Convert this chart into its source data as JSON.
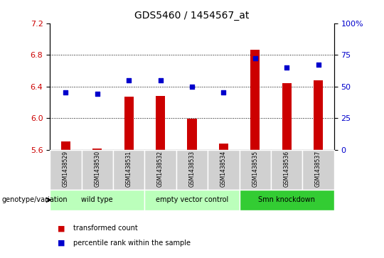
{
  "title": "GDS5460 / 1454567_at",
  "samples": [
    "GSM1438529",
    "GSM1438530",
    "GSM1438531",
    "GSM1438532",
    "GSM1438533",
    "GSM1438534",
    "GSM1438535",
    "GSM1438536",
    "GSM1438537"
  ],
  "red_values": [
    5.7,
    5.61,
    6.27,
    6.28,
    5.99,
    5.68,
    6.86,
    6.44,
    6.48
  ],
  "blue_percentiles": [
    45,
    44,
    55,
    55,
    50,
    45,
    72,
    65,
    67
  ],
  "baseline": 5.6,
  "ylim_left": [
    5.6,
    7.2
  ],
  "ylim_right": [
    0,
    100
  ],
  "yticks_left": [
    5.6,
    6.0,
    6.4,
    6.8,
    7.2
  ],
  "yticks_right": [
    0,
    25,
    50,
    75,
    100
  ],
  "ytick_labels_right": [
    "0",
    "25",
    "50",
    "75",
    "100%"
  ],
  "bar_color": "#cc0000",
  "dot_color": "#0000cc",
  "group_configs": [
    {
      "indices": [
        0,
        1,
        2
      ],
      "label": "wild type",
      "color": "#bbffbb"
    },
    {
      "indices": [
        3,
        4,
        5
      ],
      "label": "empty vector control",
      "color": "#bbffbb"
    },
    {
      "indices": [
        6,
        7,
        8
      ],
      "label": "Smn knockdown",
      "color": "#33cc33"
    }
  ],
  "genotype_label": "genotype/variation",
  "legend_red": "transformed count",
  "legend_blue": "percentile rank within the sample",
  "background_sample": "#d0d0d0"
}
